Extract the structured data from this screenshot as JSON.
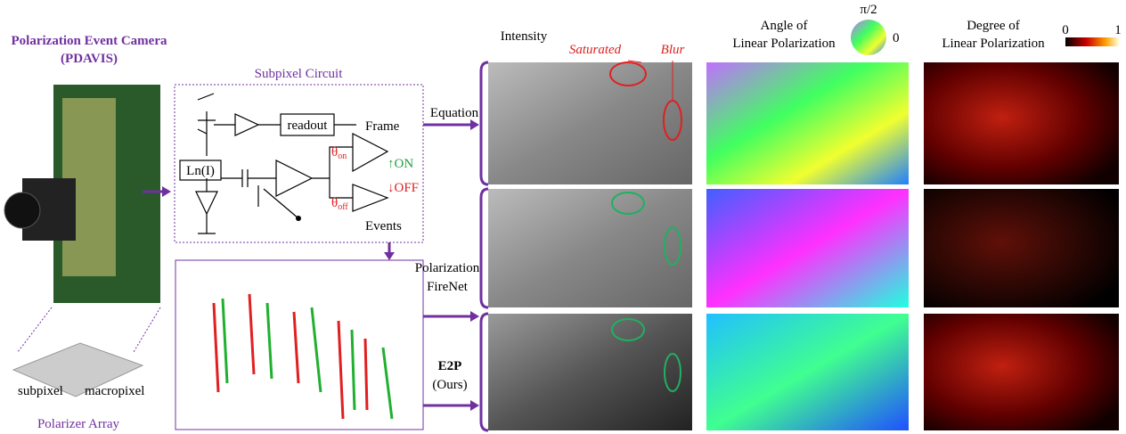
{
  "camera": {
    "title": "Polarization Event Camera",
    "subtitle": "(PDAVIS)",
    "array_label": "Polarizer Array",
    "subpixel": "subpixel",
    "macropixel": "macropixel"
  },
  "circuit": {
    "title": "Subpixel Circuit",
    "readout": "readout",
    "frame": "Frame",
    "ln": "Ln(I)",
    "theta": "θ",
    "on_sub": "on",
    "off_sub": "off",
    "on": "ON",
    "off": "OFF",
    "events": "Events",
    "up": "↑",
    "down": "↓"
  },
  "methods": {
    "equation": "Equation",
    "firenet_1": "Polarization",
    "firenet_2": "FireNet",
    "e2p": "E2P",
    "ours": "(Ours)"
  },
  "columns": {
    "intensity": "Intensity",
    "saturated": "Saturated",
    "blur": "Blur",
    "aolp_1": "Angle of",
    "aolp_2": "Linear Polarization",
    "aolp_top": "π/2",
    "aolp_right": "0",
    "dolp_1": "Degree of",
    "dolp_2": "Linear Polarization",
    "dolp_min": "0",
    "dolp_max": "1"
  }
}
